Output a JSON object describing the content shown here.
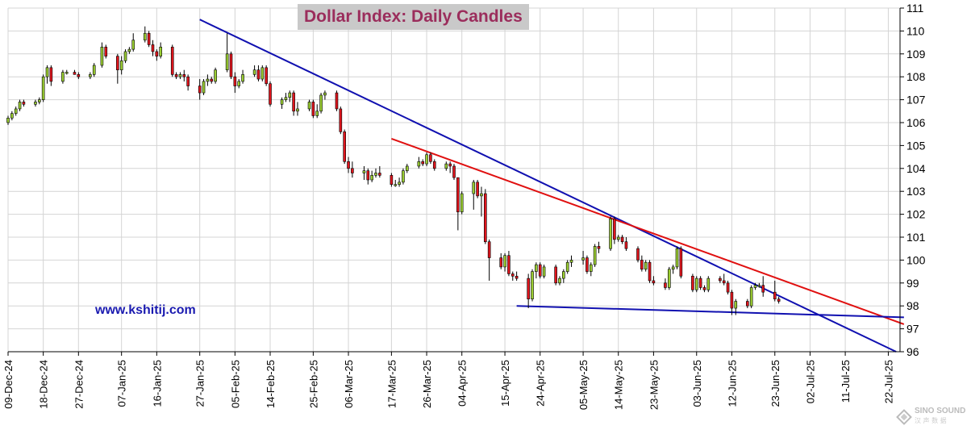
{
  "chart_data": {
    "type": "candlestick",
    "title": "Dollar Index: Daily Candles",
    "annotation": "www.kshitij.com",
    "watermark": "SINO SOUND",
    "watermark_sub": "汉 声 数 据",
    "ylim": [
      96,
      111
    ],
    "y_ticks": [
      "96",
      "97",
      "98",
      "99",
      "100",
      "101",
      "102",
      "103",
      "104",
      "105",
      "106",
      "107",
      "108",
      "109",
      "110",
      "111"
    ],
    "x_tick_labels": [
      "09-Dec-24",
      "18-Dec-24",
      "27-Dec-24",
      "07-Jan-25",
      "16-Jan-25",
      "27-Jan-25",
      "05-Feb-25",
      "14-Feb-25",
      "25-Feb-25",
      "06-Mar-25",
      "17-Mar-25",
      "26-Mar-25",
      "04-Apr-25",
      "15-Apr-25",
      "24-Apr-25",
      "05-May-25",
      "14-May-25",
      "23-May-25",
      "03-Jun-25",
      "12-Jun-25",
      "23-Jun-25",
      "02-Jul-25",
      "11-Jul-25",
      "22-Jul-25"
    ],
    "grid": true,
    "y_axis_side": "right",
    "bull_color": "#9acd32",
    "bear_color": "#e0151d",
    "trendline_colors": {
      "upper_red": "#e01010",
      "upper_blue": "#1010b0",
      "lower_blue": "#1010b0"
    },
    "candles": [
      {
        "date": "09-Dec-24",
        "o": 106.0,
        "h": 106.3,
        "l": 105.9,
        "c": 106.2
      },
      {
        "date": "10-Dec-24",
        "o": 106.2,
        "h": 106.5,
        "l": 106.1,
        "c": 106.4
      },
      {
        "date": "11-Dec-24",
        "o": 106.4,
        "h": 106.7,
        "l": 106.3,
        "c": 106.6
      },
      {
        "date": "12-Dec-24",
        "o": 106.6,
        "h": 107.0,
        "l": 106.5,
        "c": 106.9
      },
      {
        "date": "13-Dec-24",
        "o": 106.9,
        "h": 107.0,
        "l": 106.7,
        "c": 106.8
      },
      {
        "date": "16-Dec-24",
        "o": 106.8,
        "h": 107.0,
        "l": 106.7,
        "c": 106.9
      },
      {
        "date": "17-Dec-24",
        "o": 106.9,
        "h": 107.1,
        "l": 106.8,
        "c": 107.0
      },
      {
        "date": "18-Dec-24",
        "o": 107.0,
        "h": 108.1,
        "l": 106.9,
        "c": 108.0
      },
      {
        "date": "19-Dec-24",
        "o": 108.0,
        "h": 108.5,
        "l": 107.7,
        "c": 108.4
      },
      {
        "date": "20-Dec-24",
        "o": 108.4,
        "h": 108.5,
        "l": 107.6,
        "c": 107.8
      },
      {
        "date": "23-Dec-24",
        "o": 107.8,
        "h": 108.3,
        "l": 107.7,
        "c": 108.2
      },
      {
        "date": "24-Dec-24",
        "o": 108.2,
        "h": 108.3,
        "l": 108.1,
        "c": 108.2
      },
      {
        "date": "26-Dec-24",
        "o": 108.2,
        "h": 108.3,
        "l": 108.1,
        "c": 108.1
      },
      {
        "date": "27-Dec-24",
        "o": 108.1,
        "h": 108.2,
        "l": 107.9,
        "c": 108.0
      },
      {
        "date": "30-Dec-24",
        "o": 108.0,
        "h": 108.2,
        "l": 107.9,
        "c": 108.1
      },
      {
        "date": "31-Dec-24",
        "o": 108.1,
        "h": 108.6,
        "l": 108.0,
        "c": 108.5
      },
      {
        "date": "02-Jan-25",
        "o": 108.5,
        "h": 109.5,
        "l": 108.4,
        "c": 109.3
      },
      {
        "date": "03-Jan-25",
        "o": 109.3,
        "h": 109.4,
        "l": 108.8,
        "c": 108.9
      },
      {
        "date": "06-Jan-25",
        "o": 108.9,
        "h": 109.0,
        "l": 107.7,
        "c": 108.3
      },
      {
        "date": "07-Jan-25",
        "o": 108.3,
        "h": 108.9,
        "l": 108.1,
        "c": 108.7
      },
      {
        "date": "08-Jan-25",
        "o": 108.7,
        "h": 109.2,
        "l": 108.6,
        "c": 109.1
      },
      {
        "date": "09-Jan-25",
        "o": 109.1,
        "h": 109.3,
        "l": 109.0,
        "c": 109.2
      },
      {
        "date": "10-Jan-25",
        "o": 109.2,
        "h": 109.9,
        "l": 109.1,
        "c": 109.6
      },
      {
        "date": "13-Jan-25",
        "o": 109.6,
        "h": 110.2,
        "l": 109.5,
        "c": 109.9
      },
      {
        "date": "14-Jan-25",
        "o": 109.9,
        "h": 110.0,
        "l": 109.3,
        "c": 109.4
      },
      {
        "date": "15-Jan-25",
        "o": 109.4,
        "h": 109.6,
        "l": 108.9,
        "c": 109.1
      },
      {
        "date": "16-Jan-25",
        "o": 109.1,
        "h": 109.2,
        "l": 108.7,
        "c": 108.9
      },
      {
        "date": "17-Jan-25",
        "o": 108.9,
        "h": 109.5,
        "l": 108.8,
        "c": 109.3
      },
      {
        "date": "20-Jan-25",
        "o": 109.3,
        "h": 109.4,
        "l": 108.0,
        "c": 108.1
      },
      {
        "date": "21-Jan-25",
        "o": 108.1,
        "h": 108.2,
        "l": 107.9,
        "c": 108.0
      },
      {
        "date": "22-Jan-25",
        "o": 108.0,
        "h": 108.2,
        "l": 107.9,
        "c": 108.1
      },
      {
        "date": "23-Jan-25",
        "o": 108.1,
        "h": 108.3,
        "l": 107.8,
        "c": 108.0
      },
      {
        "date": "24-Jan-25",
        "o": 108.0,
        "h": 108.1,
        "l": 107.4,
        "c": 107.6
      },
      {
        "date": "27-Jan-25",
        "o": 107.6,
        "h": 107.9,
        "l": 107.0,
        "c": 107.3
      },
      {
        "date": "28-Jan-25",
        "o": 107.3,
        "h": 107.9,
        "l": 107.2,
        "c": 107.8
      },
      {
        "date": "29-Jan-25",
        "o": 107.8,
        "h": 108.1,
        "l": 107.6,
        "c": 107.9
      },
      {
        "date": "30-Jan-25",
        "o": 107.9,
        "h": 108.0,
        "l": 107.7,
        "c": 107.8
      },
      {
        "date": "31-Jan-25",
        "o": 107.8,
        "h": 108.4,
        "l": 107.7,
        "c": 108.3
      },
      {
        "date": "03-Feb-25",
        "o": 108.3,
        "h": 109.9,
        "l": 108.2,
        "c": 109.0
      },
      {
        "date": "04-Feb-25",
        "o": 109.0,
        "h": 109.1,
        "l": 107.9,
        "c": 108.0
      },
      {
        "date": "05-Feb-25",
        "o": 108.0,
        "h": 108.2,
        "l": 107.3,
        "c": 107.6
      },
      {
        "date": "06-Feb-25",
        "o": 107.6,
        "h": 107.9,
        "l": 107.5,
        "c": 107.8
      },
      {
        "date": "07-Feb-25",
        "o": 107.8,
        "h": 108.3,
        "l": 107.7,
        "c": 108.1
      },
      {
        "date": "10-Feb-25",
        "o": 108.1,
        "h": 108.5,
        "l": 108.0,
        "c": 108.3
      },
      {
        "date": "11-Feb-25",
        "o": 108.3,
        "h": 108.5,
        "l": 107.8,
        "c": 107.9
      },
      {
        "date": "12-Feb-25",
        "o": 107.9,
        "h": 108.5,
        "l": 107.8,
        "c": 108.4
      },
      {
        "date": "13-Feb-25",
        "o": 108.4,
        "h": 108.5,
        "l": 107.6,
        "c": 107.7
      },
      {
        "date": "14-Feb-25",
        "o": 107.7,
        "h": 107.8,
        "l": 106.7,
        "c": 106.8
      },
      {
        "date": "17-Feb-25",
        "o": 106.8,
        "h": 107.1,
        "l": 106.6,
        "c": 107.0
      },
      {
        "date": "18-Feb-25",
        "o": 107.0,
        "h": 107.3,
        "l": 106.9,
        "c": 107.1
      },
      {
        "date": "19-Feb-25",
        "o": 107.1,
        "h": 107.4,
        "l": 106.9,
        "c": 107.3
      },
      {
        "date": "20-Feb-25",
        "o": 107.3,
        "h": 107.4,
        "l": 106.3,
        "c": 106.5
      },
      {
        "date": "21-Feb-25",
        "o": 106.5,
        "h": 106.9,
        "l": 106.3,
        "c": 106.6
      },
      {
        "date": "24-Feb-25",
        "o": 106.6,
        "h": 107.0,
        "l": 106.5,
        "c": 106.9
      },
      {
        "date": "25-Feb-25",
        "o": 106.9,
        "h": 107.0,
        "l": 106.2,
        "c": 106.3
      },
      {
        "date": "26-Feb-25",
        "o": 106.3,
        "h": 106.8,
        "l": 106.2,
        "c": 106.5
      },
      {
        "date": "27-Feb-25",
        "o": 106.5,
        "h": 107.3,
        "l": 106.4,
        "c": 107.2
      },
      {
        "date": "28-Feb-25",
        "o": 107.2,
        "h": 107.4,
        "l": 107.0,
        "c": 107.3
      },
      {
        "date": "03-Mar-25",
        "o": 107.3,
        "h": 107.4,
        "l": 106.5,
        "c": 106.6
      },
      {
        "date": "04-Mar-25",
        "o": 106.6,
        "h": 106.7,
        "l": 105.5,
        "c": 105.6
      },
      {
        "date": "05-Mar-25",
        "o": 105.6,
        "h": 105.7,
        "l": 104.2,
        "c": 104.3
      },
      {
        "date": "06-Mar-25",
        "o": 104.3,
        "h": 104.5,
        "l": 103.8,
        "c": 104.0
      },
      {
        "date": "07-Mar-25",
        "o": 104.0,
        "h": 104.3,
        "l": 103.6,
        "c": 103.8
      },
      {
        "date": "10-Mar-25",
        "o": 103.8,
        "h": 104.1,
        "l": 103.5,
        "c": 103.9
      },
      {
        "date": "11-Mar-25",
        "o": 103.9,
        "h": 104.0,
        "l": 103.3,
        "c": 103.5
      },
      {
        "date": "12-Mar-25",
        "o": 103.5,
        "h": 103.9,
        "l": 103.4,
        "c": 103.7
      },
      {
        "date": "13-Mar-25",
        "o": 103.7,
        "h": 104.0,
        "l": 103.6,
        "c": 103.8
      },
      {
        "date": "14-Mar-25",
        "o": 103.8,
        "h": 104.1,
        "l": 103.6,
        "c": 103.7
      },
      {
        "date": "17-Mar-25",
        "o": 103.7,
        "h": 103.8,
        "l": 103.2,
        "c": 103.3
      },
      {
        "date": "18-Mar-25",
        "o": 103.3,
        "h": 103.5,
        "l": 103.2,
        "c": 103.3
      },
      {
        "date": "19-Mar-25",
        "o": 103.3,
        "h": 103.6,
        "l": 103.2,
        "c": 103.4
      },
      {
        "date": "20-Mar-25",
        "o": 103.4,
        "h": 104.0,
        "l": 103.3,
        "c": 103.9
      },
      {
        "date": "21-Mar-25",
        "o": 103.9,
        "h": 104.2,
        "l": 103.8,
        "c": 104.1
      },
      {
        "date": "24-Mar-25",
        "o": 104.1,
        "h": 104.5,
        "l": 104.0,
        "c": 104.3
      },
      {
        "date": "25-Mar-25",
        "o": 104.3,
        "h": 104.4,
        "l": 104.1,
        "c": 104.2
      },
      {
        "date": "26-Mar-25",
        "o": 104.2,
        "h": 104.7,
        "l": 104.1,
        "c": 104.6
      },
      {
        "date": "27-Mar-25",
        "o": 104.6,
        "h": 104.7,
        "l": 104.2,
        "c": 104.3
      },
      {
        "date": "28-Mar-25",
        "o": 104.3,
        "h": 104.4,
        "l": 103.9,
        "c": 104.0
      },
      {
        "date": "31-Mar-25",
        "o": 104.0,
        "h": 104.3,
        "l": 103.9,
        "c": 104.2
      },
      {
        "date": "01-Apr-25",
        "o": 104.2,
        "h": 104.3,
        "l": 103.8,
        "c": 104.1
      },
      {
        "date": "02-Apr-25",
        "o": 104.1,
        "h": 104.2,
        "l": 103.5,
        "c": 103.6
      },
      {
        "date": "03-Apr-25",
        "o": 103.6,
        "h": 103.6,
        "l": 101.3,
        "c": 102.1
      },
      {
        "date": "04-Apr-25",
        "o": 102.1,
        "h": 103.0,
        "l": 102.0,
        "c": 102.9
      },
      {
        "date": "07-Apr-25",
        "o": 102.9,
        "h": 103.5,
        "l": 102.2,
        "c": 103.4
      },
      {
        "date": "08-Apr-25",
        "o": 103.4,
        "h": 103.5,
        "l": 102.7,
        "c": 102.8
      },
      {
        "date": "09-Apr-25",
        "o": 102.8,
        "h": 103.2,
        "l": 101.9,
        "c": 102.9
      },
      {
        "date": "10-Apr-25",
        "o": 102.9,
        "h": 103.1,
        "l": 100.7,
        "c": 100.8
      },
      {
        "date": "11-Apr-25",
        "o": 100.8,
        "h": 100.9,
        "l": 99.1,
        "c": 100.1
      },
      {
        "date": "14-Apr-25",
        "o": 100.1,
        "h": 100.3,
        "l": 99.6,
        "c": 99.7
      },
      {
        "date": "15-Apr-25",
        "o": 99.7,
        "h": 100.3,
        "l": 99.5,
        "c": 100.2
      },
      {
        "date": "16-Apr-25",
        "o": 100.2,
        "h": 100.4,
        "l": 99.3,
        "c": 99.4
      },
      {
        "date": "17-Apr-25",
        "o": 99.4,
        "h": 99.5,
        "l": 99.1,
        "c": 99.3
      },
      {
        "date": "18-Apr-25",
        "o": 99.3,
        "h": 99.5,
        "l": 99.1,
        "c": 99.2
      },
      {
        "date": "21-Apr-25",
        "o": 99.2,
        "h": 99.4,
        "l": 97.9,
        "c": 98.3
      },
      {
        "date": "22-Apr-25",
        "o": 98.3,
        "h": 99.6,
        "l": 98.2,
        "c": 99.5
      },
      {
        "date": "23-Apr-25",
        "o": 99.5,
        "h": 99.9,
        "l": 99.2,
        "c": 99.8
      },
      {
        "date": "24-Apr-25",
        "o": 99.8,
        "h": 99.9,
        "l": 99.2,
        "c": 99.3
      },
      {
        "date": "25-Apr-25",
        "o": 99.3,
        "h": 99.8,
        "l": 99.2,
        "c": 99.7
      },
      {
        "date": "28-Apr-25",
        "o": 99.7,
        "h": 99.8,
        "l": 98.9,
        "c": 99.0
      },
      {
        "date": "29-Apr-25",
        "o": 99.0,
        "h": 99.3,
        "l": 98.9,
        "c": 99.2
      },
      {
        "date": "30-Apr-25",
        "o": 99.2,
        "h": 99.6,
        "l": 99.0,
        "c": 99.5
      },
      {
        "date": "01-May-25",
        "o": 99.5,
        "h": 100.0,
        "l": 99.4,
        "c": 99.9
      },
      {
        "date": "02-May-25",
        "o": 99.9,
        "h": 100.2,
        "l": 99.7,
        "c": 100.0
      },
      {
        "date": "05-May-25",
        "o": 100.0,
        "h": 100.4,
        "l": 99.8,
        "c": 100.1
      },
      {
        "date": "06-May-25",
        "o": 100.1,
        "h": 100.2,
        "l": 99.4,
        "c": 99.5
      },
      {
        "date": "07-May-25",
        "o": 99.5,
        "h": 99.9,
        "l": 99.3,
        "c": 99.8
      },
      {
        "date": "08-May-25",
        "o": 99.8,
        "h": 100.7,
        "l": 99.7,
        "c": 100.6
      },
      {
        "date": "09-May-25",
        "o": 100.6,
        "h": 100.8,
        "l": 100.3,
        "c": 100.5
      },
      {
        "date": "12-May-25",
        "o": 100.5,
        "h": 101.9,
        "l": 100.4,
        "c": 101.8
      },
      {
        "date": "13-May-25",
        "o": 101.8,
        "h": 101.9,
        "l": 100.7,
        "c": 100.9
      },
      {
        "date": "14-May-25",
        "o": 100.9,
        "h": 101.1,
        "l": 100.8,
        "c": 101.0
      },
      {
        "date": "15-May-25",
        "o": 101.0,
        "h": 101.1,
        "l": 100.7,
        "c": 100.8
      },
      {
        "date": "16-May-25",
        "o": 100.8,
        "h": 101.0,
        "l": 100.4,
        "c": 100.5
      },
      {
        "date": "19-May-25",
        "o": 100.5,
        "h": 100.6,
        "l": 99.9,
        "c": 100.0
      },
      {
        "date": "20-May-25",
        "o": 100.0,
        "h": 100.2,
        "l": 99.5,
        "c": 99.6
      },
      {
        "date": "21-May-25",
        "o": 99.6,
        "h": 100.0,
        "l": 99.5,
        "c": 99.9
      },
      {
        "date": "22-May-25",
        "o": 99.9,
        "h": 100.0,
        "l": 99.0,
        "c": 99.1
      },
      {
        "date": "23-May-25",
        "o": 99.1,
        "h": 99.3,
        "l": 98.9,
        "c": 99.0
      },
      {
        "date": "26-May-25",
        "o": 99.0,
        "h": 99.2,
        "l": 98.7,
        "c": 98.8
      },
      {
        "date": "27-May-25",
        "o": 98.8,
        "h": 99.7,
        "l": 98.7,
        "c": 99.6
      },
      {
        "date": "28-May-25",
        "o": 99.6,
        "h": 99.8,
        "l": 99.4,
        "c": 99.7
      },
      {
        "date": "29-May-25",
        "o": 99.7,
        "h": 100.6,
        "l": 99.6,
        "c": 100.5
      },
      {
        "date": "30-May-25",
        "o": 100.5,
        "h": 100.6,
        "l": 99.2,
        "c": 99.3
      },
      {
        "date": "02-Jun-25",
        "o": 99.3,
        "h": 99.4,
        "l": 98.6,
        "c": 98.7
      },
      {
        "date": "03-Jun-25",
        "o": 98.7,
        "h": 99.3,
        "l": 98.6,
        "c": 99.2
      },
      {
        "date": "04-Jun-25",
        "o": 99.2,
        "h": 99.3,
        "l": 98.7,
        "c": 98.8
      },
      {
        "date": "05-Jun-25",
        "o": 98.8,
        "h": 98.9,
        "l": 98.6,
        "c": 98.7
      },
      {
        "date": "06-Jun-25",
        "o": 98.7,
        "h": 99.3,
        "l": 98.6,
        "c": 99.2
      },
      {
        "date": "09-Jun-25",
        "o": 99.2,
        "h": 99.3,
        "l": 99.0,
        "c": 99.1
      },
      {
        "date": "10-Jun-25",
        "o": 99.1,
        "h": 99.4,
        "l": 98.9,
        "c": 99.0
      },
      {
        "date": "11-Jun-25",
        "o": 99.0,
        "h": 99.1,
        "l": 98.5,
        "c": 98.6
      },
      {
        "date": "12-Jun-25",
        "o": 98.6,
        "h": 98.7,
        "l": 97.6,
        "c": 97.9
      },
      {
        "date": "13-Jun-25",
        "o": 97.9,
        "h": 98.3,
        "l": 97.6,
        "c": 98.2
      },
      {
        "date": "16-Jun-25",
        "o": 98.2,
        "h": 98.3,
        "l": 97.9,
        "c": 98.0
      },
      {
        "date": "17-Jun-25",
        "o": 98.0,
        "h": 98.9,
        "l": 97.9,
        "c": 98.8
      },
      {
        "date": "18-Jun-25",
        "o": 98.8,
        "h": 99.0,
        "l": 98.7,
        "c": 98.9
      },
      {
        "date": "19-Jun-25",
        "o": 98.9,
        "h": 99.0,
        "l": 98.8,
        "c": 98.9
      },
      {
        "date": "20-Jun-25",
        "o": 98.9,
        "h": 99.3,
        "l": 98.4,
        "c": 98.6
      },
      {
        "date": "23-Jun-25",
        "o": 98.6,
        "h": 99.1,
        "l": 98.2,
        "c": 98.3
      },
      {
        "date": "24-Jun-25",
        "o": 98.3,
        "h": 98.4,
        "l": 98.1,
        "c": 98.2
      }
    ]
  }
}
